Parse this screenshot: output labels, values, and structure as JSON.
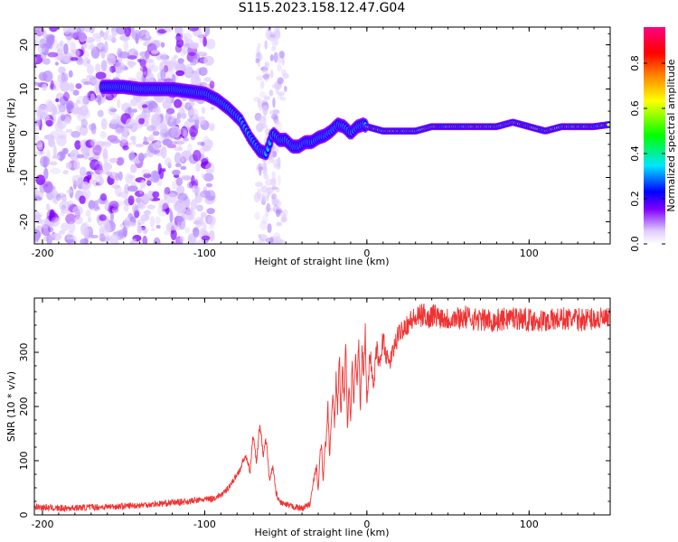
{
  "title": "S115.2023.158.12.47.G04",
  "chart_data": [
    {
      "type": "heatmap",
      "xlabel": "Height of straight line (km)",
      "ylabel": "Frequency (Hz)",
      "xlim": [
        -205,
        150
      ],
      "ylim": [
        -25,
        24
      ],
      "xticks": [
        -200,
        -100,
        0,
        100
      ],
      "yticks": [
        -20,
        -10,
        0,
        10,
        20
      ],
      "colorbar": {
        "label": "Normalized spectral amplitude",
        "range": [
          0,
          0.96
        ],
        "ticks": [
          0.0,
          0.2,
          0.4,
          0.6,
          0.8
        ],
        "colors": [
          "#ffffff",
          "#e0ccff",
          "#8000ff",
          "#0000ff",
          "#00e5ff",
          "#00ff00",
          "#ffff00",
          "#ff8000",
          "#ff0000",
          "#ff0080"
        ]
      },
      "ridge": {
        "x": [
          -163,
          -150,
          -140,
          -130,
          -120,
          -110,
          -100,
          -92,
          -85,
          -78,
          -72,
          -66,
          -62,
          -58,
          -54,
          -50,
          -46,
          -42,
          -38,
          -34,
          -30,
          -26,
          -22,
          -18,
          -14,
          -10,
          -6,
          -2,
          0,
          10,
          20,
          30,
          40,
          60,
          80,
          90,
          100,
          110,
          120,
          130,
          140,
          150
        ],
        "y": [
          10.5,
          10.5,
          10,
          10,
          10,
          9.5,
          9,
          7.5,
          5.5,
          3,
          -1,
          -4,
          -4.5,
          0,
          -1.5,
          -1.5,
          -3,
          -3,
          -2,
          -2,
          -1,
          -0.5,
          0.5,
          2,
          1.5,
          0,
          1.5,
          2,
          1.5,
          0.5,
          0.5,
          0.5,
          1.5,
          1.5,
          1.5,
          2.5,
          1.5,
          0.5,
          1.5,
          1.5,
          1.5,
          2
        ]
      }
    },
    {
      "type": "line",
      "xlabel": "Height of straight line (km)",
      "ylabel": "SNR (10 * v/v)",
      "xlim": [
        -205,
        150
      ],
      "ylim": [
        0,
        400
      ],
      "xticks": [
        -200,
        -100,
        0,
        100
      ],
      "yticks": [
        0,
        100,
        200,
        300
      ],
      "line_color": "#ee3333",
      "series": [
        {
          "x": [
            -205,
            -190,
            -170,
            -150,
            -130,
            -110,
            -95,
            -88,
            -82,
            -78,
            -75,
            -72,
            -70,
            -68,
            -66,
            -64,
            -62,
            -60,
            -58,
            -56,
            -54,
            -50,
            -45,
            -40,
            -35,
            -33,
            -31,
            -30,
            -29,
            -28,
            -27,
            -26,
            -25,
            -24,
            -23,
            -22,
            -21,
            -20,
            -19,
            -18,
            -17,
            -16,
            -15,
            -14,
            -13,
            -12,
            -11,
            -10,
            -9,
            -8,
            -7,
            -6,
            -5,
            -4,
            -3,
            -2,
            -1,
            0,
            2,
            4,
            6,
            8,
            10,
            12,
            14,
            16,
            18,
            20,
            22,
            24,
            26,
            28,
            30,
            32,
            34,
            36,
            38,
            40,
            50,
            60,
            70,
            80,
            90,
            100,
            110,
            120,
            130,
            140,
            150
          ],
          "y": [
            15,
            12,
            14,
            16,
            20,
            25,
            30,
            40,
            65,
            85,
            110,
            80,
            150,
            95,
            170,
            110,
            140,
            60,
            90,
            40,
            25,
            18,
            15,
            12,
            20,
            60,
            90,
            40,
            110,
            130,
            60,
            120,
            140,
            200,
            110,
            160,
            230,
            170,
            250,
            190,
            300,
            180,
            270,
            210,
            320,
            160,
            240,
            180,
            290,
            200,
            300,
            230,
            330,
            190,
            310,
            250,
            340,
            210,
            300,
            230,
            310,
            270,
            330,
            290,
            280,
            300,
            320,
            335,
            345,
            350,
            355,
            360,
            362,
            365,
            368,
            370,
            360,
            370,
            362,
            365,
            360,
            358,
            365,
            360,
            358,
            362,
            360,
            362,
            360
          ]
        }
      ]
    }
  ]
}
